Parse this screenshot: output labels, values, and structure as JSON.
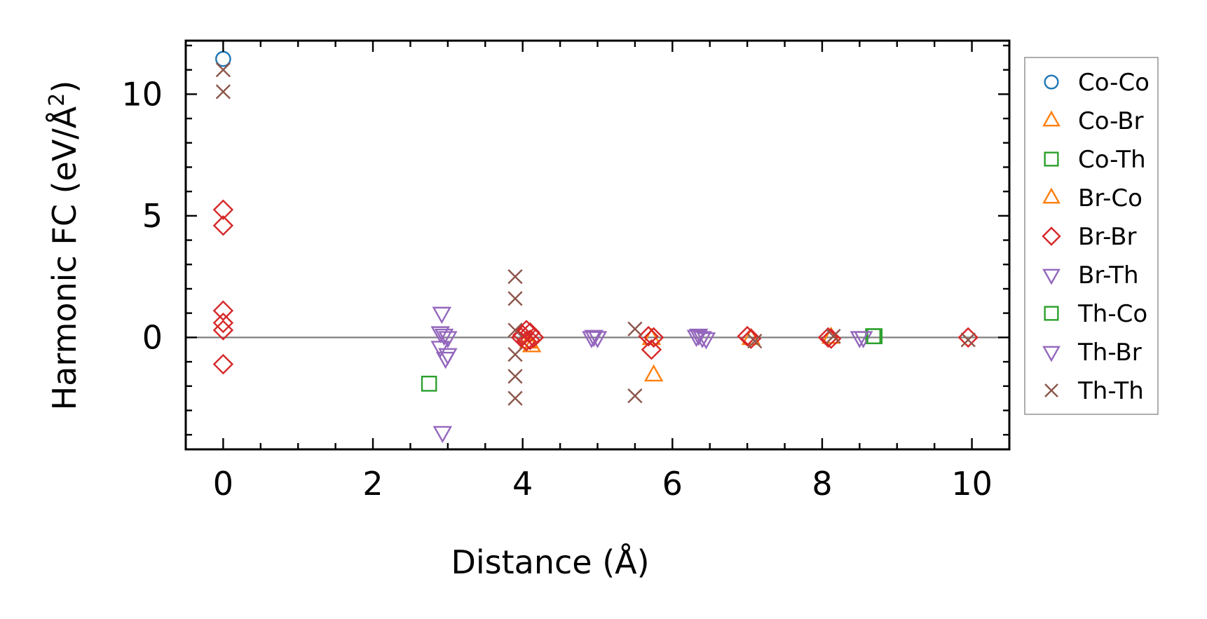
{
  "chart_data": {
    "type": "scatter",
    "title": "",
    "xlabel": "Distance (Å)",
    "ylabel": "Harmonic FC (eV/Å²)",
    "ylabel_main": "Harmonic FC (eV/Å",
    "ylabel_sup": "2",
    "ylabel_end": ")",
    "xlim": [
      -0.5,
      10.5
    ],
    "ylim": [
      -4.6,
      12.2
    ],
    "xticks": [
      0,
      2,
      4,
      6,
      8,
      10
    ],
    "xtick_labels": [
      "0",
      "2",
      "4",
      "6",
      "8",
      "10"
    ],
    "yticks": [
      0,
      5,
      10
    ],
    "ytick_labels": [
      "0",
      "5",
      "10"
    ],
    "reference_line_y": 0,
    "grid": false,
    "legend_position": "outside-right",
    "series": [
      {
        "name": "Co-Co",
        "marker": "circle",
        "color": "#1f77b4",
        "points": [
          [
            0,
            11.45
          ]
        ]
      },
      {
        "name": "Co-Br",
        "marker": "triangle-up",
        "color": "#ff7f0e",
        "points": [
          [
            4.12,
            -0.35
          ],
          [
            5.75,
            -1.55
          ],
          [
            7.05,
            -0.05
          ],
          [
            8.12,
            0.0
          ]
        ]
      },
      {
        "name": "Co-Th",
        "marker": "square",
        "color": "#2ca02c",
        "points": [
          [
            2.75,
            -1.9
          ],
          [
            8.68,
            0.05
          ]
        ]
      },
      {
        "name": "Br-Co",
        "marker": "triangle-up",
        "color": "#ff7f0e",
        "points": [
          [
            4.08,
            -0.2
          ],
          [
            5.72,
            -0.05
          ]
        ]
      },
      {
        "name": "Br-Br",
        "marker": "diamond",
        "color": "#d62728",
        "points": [
          [
            0,
            5.25
          ],
          [
            0,
            4.6
          ],
          [
            0,
            1.1
          ],
          [
            0,
            0.6
          ],
          [
            0,
            0.3
          ],
          [
            0,
            -1.1
          ],
          [
            4.0,
            0.1
          ],
          [
            4.05,
            0.3
          ],
          [
            4.1,
            0.2
          ],
          [
            4.15,
            0.0
          ],
          [
            4.05,
            -0.15
          ],
          [
            4.1,
            -0.1
          ],
          [
            3.98,
            0.0
          ],
          [
            5.68,
            0.05
          ],
          [
            5.72,
            -0.5
          ],
          [
            5.75,
            0.0
          ],
          [
            7.0,
            0.05
          ],
          [
            7.05,
            -0.05
          ],
          [
            8.08,
            0.0
          ],
          [
            8.12,
            -0.05
          ],
          [
            9.95,
            0.0
          ]
        ]
      },
      {
        "name": "Br-Th",
        "marker": "triangle-down",
        "color": "#9467bd",
        "points": [
          [
            2.92,
            1.0
          ],
          [
            2.95,
            0.1
          ],
          [
            3.0,
            0.0
          ],
          [
            2.9,
            -0.4
          ],
          [
            2.97,
            -0.85
          ],
          [
            2.93,
            -3.9
          ],
          [
            4.95,
            0.05
          ],
          [
            5.0,
            0.0
          ],
          [
            6.35,
            0.1
          ],
          [
            6.4,
            0.0
          ],
          [
            8.55,
            0.0
          ]
        ]
      },
      {
        "name": "Th-Co",
        "marker": "square",
        "color": "#2ca02c",
        "points": [
          [
            8.7,
            0.05
          ]
        ]
      },
      {
        "name": "Th-Br",
        "marker": "triangle-down",
        "color": "#9467bd",
        "points": [
          [
            2.9,
            0.2
          ],
          [
            3.0,
            -0.7
          ],
          [
            4.92,
            0.0
          ],
          [
            6.32,
            0.05
          ],
          [
            6.45,
            -0.05
          ],
          [
            8.5,
            0.0
          ]
        ]
      },
      {
        "name": "Th-Th",
        "marker": "x",
        "color": "#8c564b",
        "points": [
          [
            0,
            11.0
          ],
          [
            0,
            10.1
          ],
          [
            3.9,
            2.5
          ],
          [
            3.9,
            1.6
          ],
          [
            3.9,
            0.3
          ],
          [
            3.9,
            -0.7
          ],
          [
            3.9,
            -1.6
          ],
          [
            3.9,
            -2.5
          ],
          [
            5.5,
            0.35
          ],
          [
            5.5,
            -2.4
          ],
          [
            7.1,
            -0.15
          ],
          [
            8.15,
            0.05
          ],
          [
            9.95,
            -0.1
          ]
        ]
      }
    ]
  }
}
